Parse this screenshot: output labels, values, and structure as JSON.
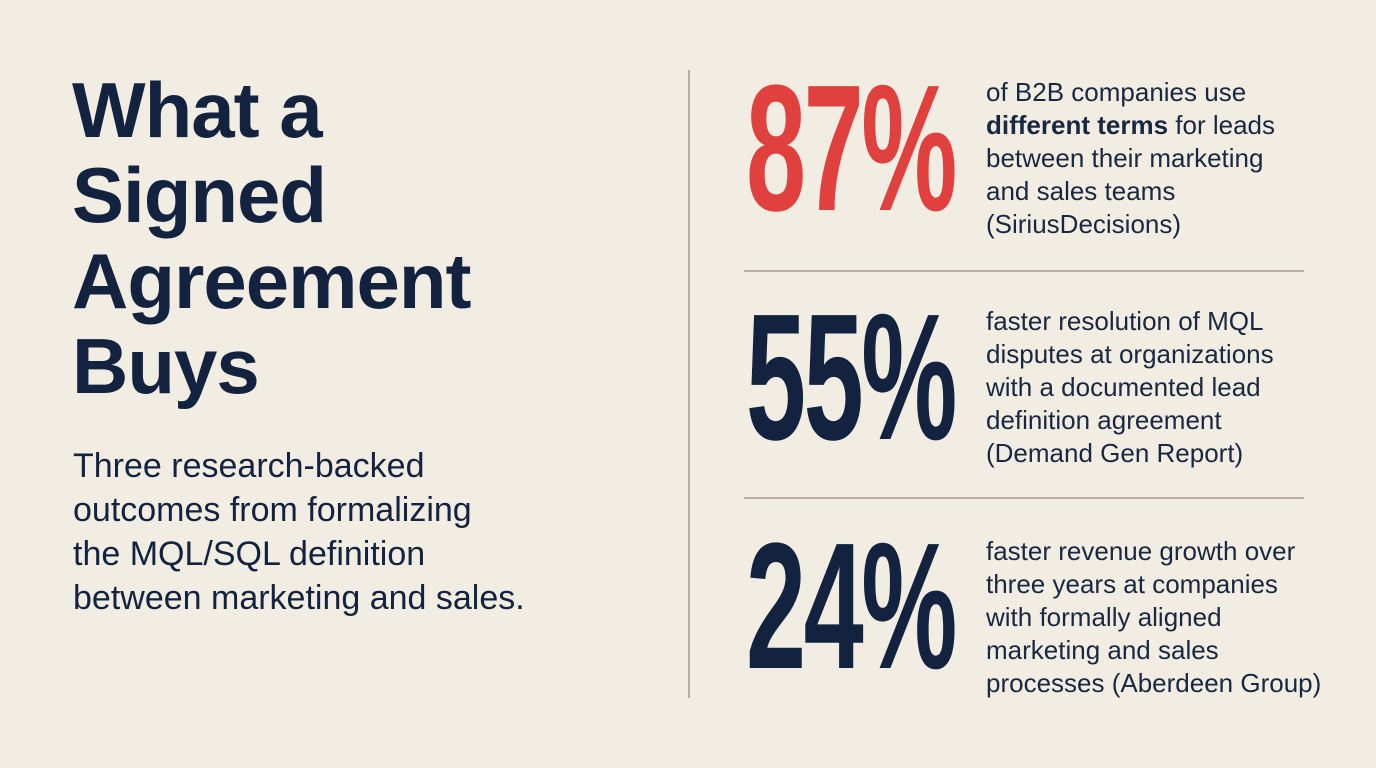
{
  "title_lines": [
    "What a",
    "Signed",
    "Agreement",
    "Buys"
  ],
  "subtitle_lines": [
    "Three research-backed",
    "outcomes from formalizing",
    "the MQL/SQL definition",
    "between marketing and sales."
  ],
  "stats": [
    {
      "value": "87%",
      "color": "#e0413f",
      "lines": [
        [
          {
            "text": "of B2B companies use"
          }
        ],
        [
          {
            "text": "different terms",
            "bold": true
          },
          {
            "text": " for leads"
          }
        ],
        [
          {
            "text": "between their marketing"
          }
        ],
        [
          {
            "text": "and sales teams"
          }
        ],
        [
          {
            "text": "(SiriusDecisions)"
          }
        ]
      ]
    },
    {
      "value": "55%",
      "color": "#13233f",
      "lines": [
        [
          {
            "text": "faster resolution of MQL"
          }
        ],
        [
          {
            "text": "disputes at organizations"
          }
        ],
        [
          {
            "text": "with a documented lead"
          }
        ],
        [
          {
            "text": "definition agreement"
          }
        ],
        [
          {
            "text": "(Demand Gen Report)"
          }
        ]
      ]
    },
    {
      "value": "24%",
      "color": "#13233f",
      "lines": [
        [
          {
            "text": "faster revenue growth over"
          }
        ],
        [
          {
            "text": "three years at companies"
          }
        ],
        [
          {
            "text": "with formally aligned"
          }
        ],
        [
          {
            "text": "marketing and sales"
          }
        ],
        [
          {
            "text": "processes (Aberdeen Group)"
          }
        ]
      ]
    }
  ]
}
